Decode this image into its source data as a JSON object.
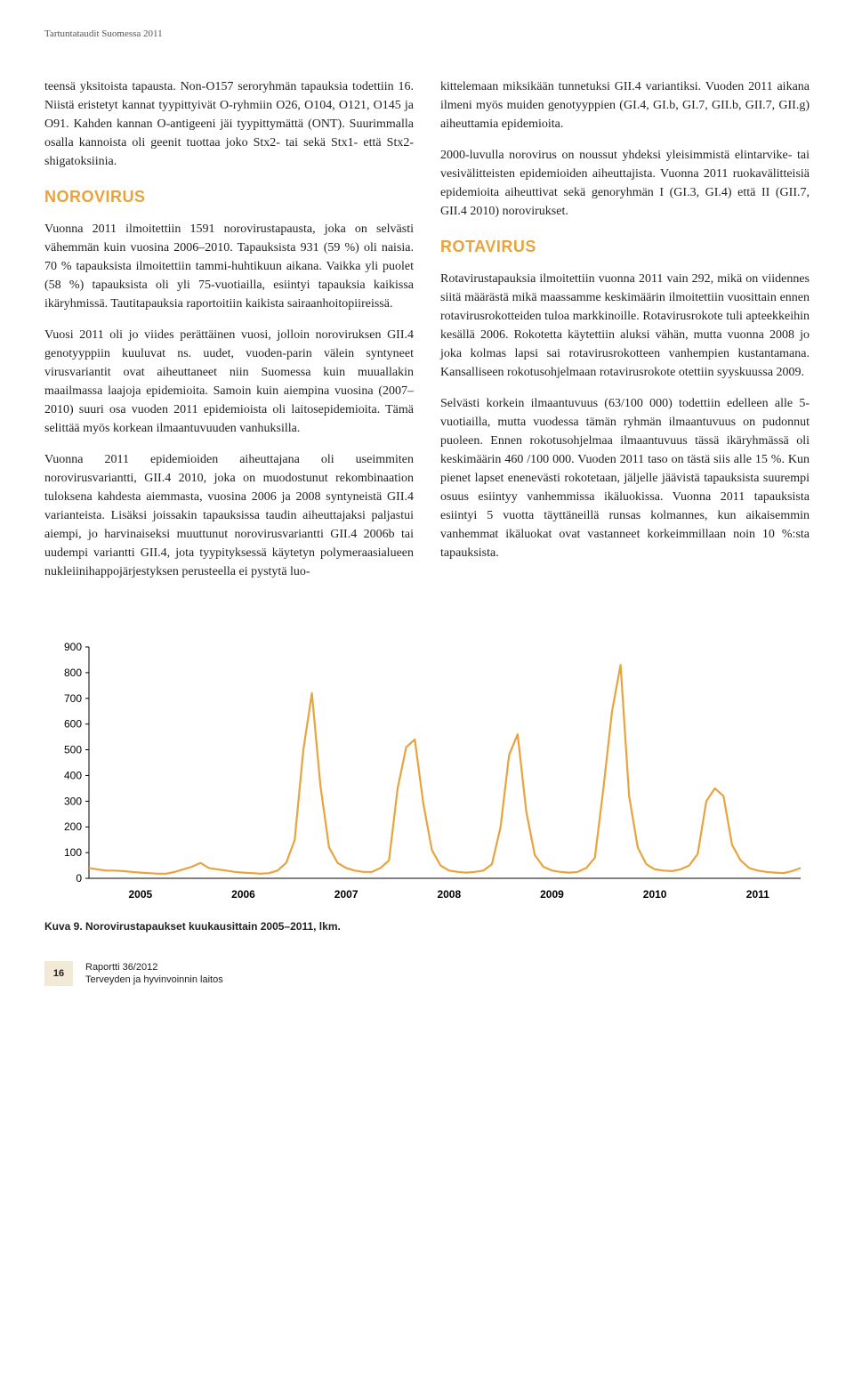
{
  "running_head": "Tartuntataudit Suomessa 2011",
  "left_column": {
    "intro": "teensä yksitoista tapausta. Non-O157 seroryhmän tapauksia todettiin 16. Niistä eristetyt kannat tyypittyivät O-ryhmiin O26, O104, O121, O145 ja O91. Kahden kannan O-antigeeni jäi tyypittymättä (ONT). Suurimmalla osalla kannoista oli geenit tuottaa joko Stx2- tai sekä Stx1- että Stx2-shigatoksiinia.",
    "norovirus_heading": "Norovirus",
    "noro_p1": "Vuonna 2011 ilmoitettiin 1591 norovirustapausta, joka on selvästi vähemmän kuin vuosina 2006–2010. Tapauksista 931 (59 %) oli naisia. 70 % tapauksista ilmoitettiin tammi-huhtikuun aikana. Vaikka yli puolet (58 %) tapauksista oli yli 75-vuotiailla, esiintyi tapauksia kaikissa ikäryhmissä. Tautitapauksia raportoitiin kaikista sairaanhoitopiireissä.",
    "noro_p2": "Vuosi 2011 oli jo viides perättäinen vuosi, jolloin noroviruksen GII.4 genotyyppiin kuuluvat ns. uudet, vuoden-parin välein syntyneet virusvariantit ovat aiheuttaneet niin Suomessa kuin muuallakin maailmassa laajoja epidemioita. Samoin kuin aiempina vuosina (2007–2010) suuri osa vuoden 2011 epidemioista oli laitosepidemioita. Tämä selittää myös korkean ilmaantuvuuden vanhuksilla.",
    "noro_p3": "Vuonna 2011 epidemioiden aiheuttajana oli useimmiten norovirusvariantti, GII.4 2010, joka on muodostunut rekombinaation tuloksena kahdesta aiemmasta, vuosina 2006 ja 2008 syntyneistä GII.4 varianteista. Lisäksi joissakin tapauksissa taudin aiheuttajaksi paljastui aiempi, jo harvinaiseksi muuttunut norovirusvariantti GII.4 2006b tai uudempi variantti GII.4, jota tyypityksessä käytetyn polymeraasialueen nukleiinihappojärjestyksen perusteella ei pystytä luo-"
  },
  "right_column": {
    "cont_p": "kittelemaan miksikään tunnetuksi GII.4 variantiksi. Vuoden 2011 aikana ilmeni myös muiden genotyyppien (GI.4, GI.b, GI.7, GII.b, GII.7, GII.g) aiheuttamia epidemioita.",
    "cont_p2": "2000-luvulla norovirus on noussut yhdeksi yleisimmistä elintarvike- tai vesivälitteisten epidemioiden aiheuttajista. Vuonna 2011 ruokavälitteisiä epidemioita aiheuttivat sekä genoryhmän I (GI.3, GI.4) että II (GII.7, GII.4 2010) norovirukset.",
    "rotavirus_heading": "Rotavirus",
    "rota_p1": "Rotavirustapauksia ilmoitettiin vuonna 2011 vain 292, mikä on viidennes siitä määrästä mikä maassamme keskimäärin ilmoitettiin vuosittain ennen rotavirusrokotteiden tuloa markkinoille. Rotavirusrokote tuli apteekkeihin kesällä 2006. Rokotetta käytettiin aluksi vähän, mutta vuonna 2008 jo joka kolmas lapsi sai rotavirusrokotteen vanhempien kustantamana. Kansalliseen rokotusohjelmaan rotavirusrokote otettiin syyskuussa 2009.",
    "rota_p2": "Selvästi korkein ilmaantuvuus (63/100 000) todettiin edelleen alle 5-vuotiailla, mutta vuodessa tämän ryhmän ilmaantuvuus on pudonnut puoleen. Ennen rokotusohjelmaa ilmaantuvuus tässä ikäryhmässä oli keskimäärin 460 /100 000. Vuoden 2011 taso on tästä siis alle 15 %. Kun pienet lapset enenevästi rokotetaan, jäljelle jäävistä tapauksista suurempi osuus esiintyy vanhemmissa ikäluokissa. Vuonna 2011 tapauksista esiintyi 5 vuotta täyttäneillä runsas kolmannes, kun aikaisemmin vanhemmat ikäluokat ovat vastanneet korkeimmillaan noin 10 %:sta tapauksista."
  },
  "chart": {
    "type": "line",
    "title_none": "",
    "line_color": "#e8a33d",
    "line_width": 2.2,
    "background_color": "#ffffff",
    "axis_color": "#000000",
    "tick_fontsize": 12,
    "tick_font": "Arial",
    "ylim": [
      0,
      900
    ],
    "ytick_step": 100,
    "yticks": [
      0,
      100,
      200,
      300,
      400,
      500,
      600,
      700,
      800,
      900
    ],
    "xlabels": [
      "2005",
      "2006",
      "2007",
      "2008",
      "2009",
      "2010",
      "2011"
    ],
    "months_count": 84,
    "values": [
      40,
      35,
      30,
      30,
      28,
      25,
      22,
      20,
      18,
      18,
      25,
      35,
      45,
      60,
      40,
      35,
      30,
      25,
      22,
      20,
      18,
      20,
      30,
      60,
      150,
      500,
      720,
      360,
      120,
      60,
      40,
      30,
      25,
      25,
      40,
      70,
      350,
      510,
      540,
      290,
      110,
      50,
      30,
      25,
      22,
      25,
      30,
      55,
      200,
      480,
      560,
      260,
      90,
      45,
      30,
      25,
      22,
      25,
      40,
      80,
      350,
      650,
      830,
      320,
      120,
      55,
      35,
      30,
      28,
      35,
      50,
      95,
      300,
      350,
      320,
      130,
      70,
      40,
      30,
      25,
      22,
      20,
      28,
      40
    ],
    "caption": "Kuva 9. Norovirustapaukset kuukausittain 2005–2011, lkm."
  },
  "footer": {
    "page_number": "16",
    "report_line1": "Raportti 36/2012",
    "report_line2": "Terveyden ja hyvinvoinnin laitos"
  }
}
